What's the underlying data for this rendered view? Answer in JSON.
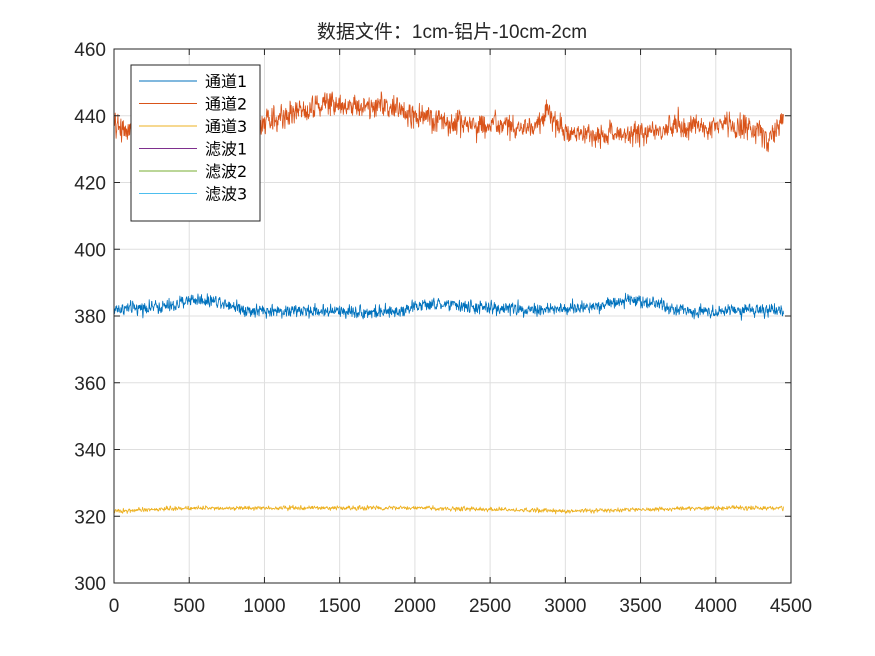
{
  "chart_data": {
    "type": "line",
    "title": "数据文件：1cm-铝片-10cm-2cm",
    "xlabel": "",
    "ylabel": "",
    "xlim": [
      0,
      4500
    ],
    "ylim": [
      300,
      460
    ],
    "x_ticks": [
      0,
      500,
      1000,
      1500,
      2000,
      2500,
      3000,
      3500,
      4000,
      4500
    ],
    "y_ticks": [
      300,
      320,
      340,
      360,
      380,
      400,
      420,
      440,
      460
    ],
    "grid": true,
    "legend_position": "top-left",
    "num_samples": 4450,
    "series": [
      {
        "name": "通道1",
        "color": "#0072BD",
        "noise_amplitude": 2.2,
        "x": [
          0,
          200,
          400,
          500,
          700,
          800,
          900,
          1000,
          1200,
          1500,
          1800,
          1900,
          2000,
          2200,
          2400,
          2500,
          2800,
          3000,
          3200,
          3400,
          3600,
          3700,
          3800,
          4000,
          4200,
          4450
        ],
        "values": [
          382,
          382.5,
          383,
          385,
          384.5,
          383,
          381.5,
          381.5,
          381.5,
          381.5,
          381,
          381.5,
          383,
          383.5,
          382.5,
          382.5,
          382,
          382,
          383,
          385,
          384,
          382,
          381.5,
          381.5,
          382,
          381
        ]
      },
      {
        "name": "通道2",
        "color": "#D95319",
        "noise_amplitude": 4,
        "x": [
          0,
          100,
          250,
          400,
          600,
          800,
          1000,
          1200,
          1400,
          1600,
          1800,
          2000,
          2200,
          2500,
          2800,
          2870,
          3000,
          3200,
          3500,
          3800,
          4000,
          4200,
          4350,
          4450
        ],
        "values": [
          437,
          436,
          438,
          439,
          437,
          437,
          438,
          441,
          444,
          443,
          443,
          440,
          438,
          437,
          436,
          441,
          435,
          434,
          435,
          437,
          437,
          437,
          433,
          440
        ]
      },
      {
        "name": "通道3",
        "color": "#EDB120",
        "noise_amplitude": 0.7,
        "x": [
          0,
          500,
          1000,
          1500,
          2000,
          2500,
          3000,
          3500,
          4000,
          4450
        ],
        "values": [
          321.5,
          322.5,
          322.5,
          322.5,
          322.5,
          322,
          321.5,
          322,
          322.5,
          322.5
        ]
      },
      {
        "name": "滤波1",
        "color": "#7E2F8E",
        "x": [],
        "values": []
      },
      {
        "name": "滤波2",
        "color": "#77AC30",
        "x": [],
        "values": []
      },
      {
        "name": "滤波3",
        "color": "#4DBEEE",
        "x": [],
        "values": []
      }
    ]
  }
}
